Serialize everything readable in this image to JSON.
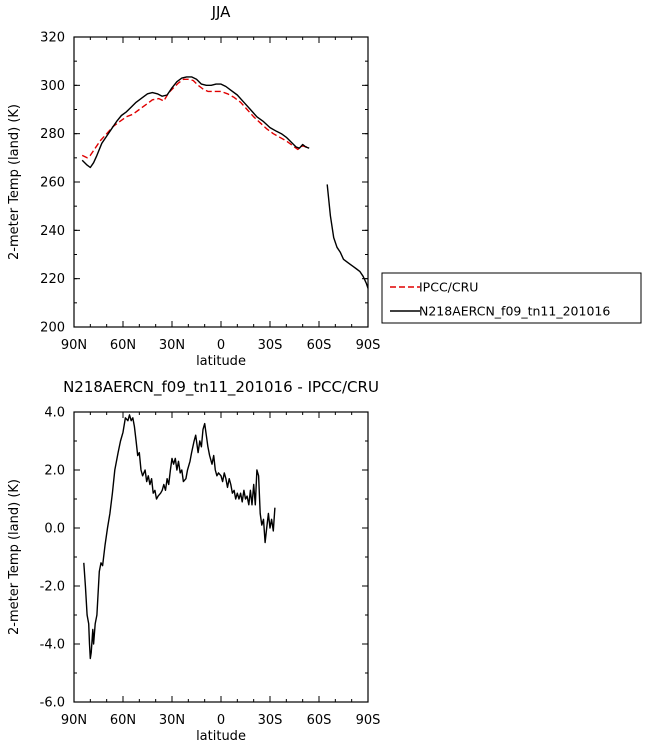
{
  "chart_data": [
    {
      "type": "line",
      "title": "JJA",
      "xlabel": "latitude",
      "ylabel": "2-meter Temp (land) (K)",
      "xlim": [
        90,
        -90
      ],
      "ylim": [
        200,
        320
      ],
      "xticks": [
        90,
        60,
        30,
        0,
        -30,
        -60,
        -90
      ],
      "xtick_labels": [
        "90N",
        "60N",
        "30N",
        "0",
        "30S",
        "60S",
        "90S"
      ],
      "yticks": [
        200,
        220,
        240,
        260,
        280,
        300,
        320
      ],
      "ytick_labels": [
        "200",
        "220",
        "240",
        "260",
        "280",
        "300",
        "320"
      ],
      "legend_position": "right",
      "series": [
        {
          "name": "IPCC/CRU",
          "color": "#e00000",
          "dashed": true,
          "segments": [
            [
              [
                85,
                271
              ],
              [
                82,
                270
              ],
              [
                80,
                271
              ],
              [
                77,
                274
              ],
              [
                74,
                277
              ],
              [
                70,
                280
              ],
              [
                66,
                283
              ],
              [
                62,
                285
              ],
              [
                58,
                287
              ],
              [
                54,
                288
              ],
              [
                50,
                290
              ],
              [
                46,
                292
              ],
              [
                42,
                294
              ],
              [
                38,
                294.5
              ],
              [
                35,
                293.5
              ],
              [
                32,
                297
              ],
              [
                29,
                299
              ],
              [
                26,
                301
              ],
              [
                23,
                302.5
              ],
              [
                20,
                302.5
              ],
              [
                17,
                302
              ],
              [
                14,
                300
              ],
              [
                11,
                298.5
              ],
              [
                8,
                297.5
              ],
              [
                4,
                297.5
              ],
              [
                0,
                297.5
              ],
              [
                -4,
                296.5
              ],
              [
                -8,
                295
              ],
              [
                -12,
                293
              ],
              [
                -16,
                290
              ],
              [
                -20,
                287
              ],
              [
                -24,
                284.5
              ],
              [
                -28,
                282
              ],
              [
                -32,
                280
              ],
              [
                -36,
                278.5
              ],
              [
                -40,
                277
              ],
              [
                -44,
                275
              ],
              [
                -47,
                273.5
              ],
              [
                -50,
                275
              ],
              [
                -52,
                274.5
              ],
              [
                -54,
                275
              ]
            ]
          ]
        },
        {
          "name": "N218AERCN_f09_tn11_201016",
          "color": "#000000",
          "dashed": false,
          "segments": [
            [
              [
                85,
                269
              ],
              [
                82,
                267
              ],
              [
                80,
                266
              ],
              [
                78,
                268
              ],
              [
                76,
                271
              ],
              [
                73,
                276
              ],
              [
                70,
                279
              ],
              [
                67,
                282
              ],
              [
                64,
                285
              ],
              [
                61,
                287.5
              ],
              [
                58,
                289
              ],
              [
                55,
                291
              ],
              [
                52,
                293
              ],
              [
                48,
                295
              ],
              [
                45,
                296.5
              ],
              [
                42,
                297
              ],
              [
                39,
                296.5
              ],
              [
                36,
                295.5
              ],
              [
                33,
                296
              ],
              [
                30,
                299
              ],
              [
                27,
                301.5
              ],
              [
                24,
                303
              ],
              [
                21,
                303.5
              ],
              [
                18,
                303.5
              ],
              [
                15,
                302.5
              ],
              [
                12,
                300.5
              ],
              [
                9,
                300
              ],
              [
                6,
                300
              ],
              [
                3,
                300.5
              ],
              [
                0,
                300.5
              ],
              [
                -3,
                299.5
              ],
              [
                -6,
                298
              ],
              [
                -10,
                296
              ],
              [
                -14,
                293
              ],
              [
                -18,
                290
              ],
              [
                -22,
                287
              ],
              [
                -26,
                285
              ],
              [
                -30,
                282.5
              ],
              [
                -34,
                281
              ],
              [
                -37,
                280
              ],
              [
                -40,
                278.5
              ],
              [
                -43,
                276.5
              ],
              [
                -46,
                274.5
              ],
              [
                -48,
                274
              ],
              [
                -50,
                275.5
              ],
              [
                -52,
                274.5
              ],
              [
                -54,
                274
              ]
            ],
            [
              [
                -65,
                259
              ],
              [
                -67,
                246
              ],
              [
                -69,
                237
              ],
              [
                -71,
                233
              ],
              [
                -73,
                231
              ],
              [
                -75,
                228
              ],
              [
                -77,
                227
              ],
              [
                -79,
                226
              ],
              [
                -81,
                225
              ],
              [
                -83,
                224
              ],
              [
                -85,
                223
              ],
              [
                -87,
                221
              ],
              [
                -89,
                218
              ],
              [
                -90,
                216
              ]
            ]
          ]
        }
      ]
    },
    {
      "type": "line",
      "title": "N218AERCN_f09_tn11_201016 - IPCC/CRU",
      "xlabel": "latitude",
      "ylabel": "2-meter Temp (land) (K)",
      "xlim": [
        90,
        -90
      ],
      "ylim": [
        -6,
        4
      ],
      "xticks": [
        90,
        60,
        30,
        0,
        -30,
        -60,
        -90
      ],
      "xtick_labels": [
        "90N",
        "60N",
        "30N",
        "0",
        "30S",
        "60S",
        "90S"
      ],
      "yticks": [
        -6,
        -4,
        -2,
        0,
        2,
        4
      ],
      "ytick_labels": [
        "-6.0",
        "-4.0",
        "-2.0",
        "0.0",
        "2.0",
        "4.0"
      ],
      "series": [
        {
          "color": "#000000",
          "dashed": false,
          "segments": [
            [
              [
                84,
                -1.2
              ],
              [
                83,
                -2.0
              ],
              [
                82,
                -3.0
              ],
              [
                81,
                -3.3
              ],
              [
                80.5,
                -4.0
              ],
              [
                80,
                -4.5
              ],
              [
                79.5,
                -4.3
              ],
              [
                78.5,
                -3.5
              ],
              [
                78,
                -4.0
              ],
              [
                77,
                -3.3
              ],
              [
                76,
                -3.0
              ],
              [
                75,
                -2.0
              ],
              [
                74.5,
                -1.5
              ],
              [
                73.5,
                -1.2
              ],
              [
                72.5,
                -1.3
              ],
              [
                71,
                -0.6
              ],
              [
                69.5,
                0.0
              ],
              [
                68,
                0.5
              ],
              [
                66.5,
                1.2
              ],
              [
                65,
                2.0
              ],
              [
                63,
                2.6
              ],
              [
                61.5,
                3.0
              ],
              [
                60,
                3.3
              ],
              [
                58.5,
                3.8
              ],
              [
                57,
                3.7
              ],
              [
                56,
                3.9
              ],
              [
                55,
                3.7
              ],
              [
                54,
                3.8
              ],
              [
                53,
                3.5
              ],
              [
                52,
                3.0
              ],
              [
                51,
                2.5
              ],
              [
                50,
                2.6
              ],
              [
                49,
                2.0
              ],
              [
                48,
                1.8
              ],
              [
                46.5,
                2.0
              ],
              [
                45.5,
                1.6
              ],
              [
                44.5,
                1.8
              ],
              [
                43.5,
                1.5
              ],
              [
                42.5,
                1.7
              ],
              [
                41.5,
                1.2
              ],
              [
                40.5,
                1.3
              ],
              [
                39.5,
                1.0
              ],
              [
                38.5,
                1.1
              ],
              [
                37,
                1.2
              ],
              [
                36,
                1.3
              ],
              [
                35,
                1.5
              ],
              [
                34,
                1.3
              ],
              [
                33,
                1.7
              ],
              [
                32,
                1.5
              ],
              [
                31,
                2.0
              ],
              [
                30,
                2.4
              ],
              [
                29,
                2.2
              ],
              [
                28,
                2.4
              ],
              [
                27,
                2.0
              ],
              [
                26,
                2.3
              ],
              [
                25,
                1.9
              ],
              [
                24,
                2.0
              ],
              [
                23,
                1.6
              ],
              [
                21.5,
                1.7
              ],
              [
                20.5,
                2.0
              ],
              [
                19,
                2.3
              ],
              [
                18,
                2.6
              ],
              [
                16.5,
                3.0
              ],
              [
                15.5,
                3.2
              ],
              [
                14,
                2.6
              ],
              [
                13,
                3.0
              ],
              [
                12,
                2.8
              ],
              [
                11,
                3.4
              ],
              [
                10,
                3.6
              ],
              [
                9,
                3.2
              ],
              [
                8,
                2.8
              ],
              [
                7,
                2.5
              ],
              [
                5.5,
                2.2
              ],
              [
                4.5,
                2.5
              ],
              [
                3.5,
                2.0
              ],
              [
                2.5,
                1.8
              ],
              [
                1.5,
                1.9
              ],
              [
                0,
                1.8
              ],
              [
                -1,
                1.6
              ],
              [
                -2,
                1.9
              ],
              [
                -3,
                1.7
              ],
              [
                -4,
                1.4
              ],
              [
                -5,
                1.7
              ],
              [
                -6,
                1.5
              ],
              [
                -7,
                1.2
              ],
              [
                -8,
                1.3
              ],
              [
                -9,
                1.0
              ],
              [
                -10,
                1.2
              ],
              [
                -11,
                1.0
              ],
              [
                -12,
                1.2
              ],
              [
                -13,
                0.9
              ],
              [
                -14,
                1.3
              ],
              [
                -15,
                1.0
              ],
              [
                -16,
                1.1
              ],
              [
                -17,
                0.8
              ],
              [
                -18,
                1.3
              ],
              [
                -19,
                0.8
              ],
              [
                -20,
                1.5
              ],
              [
                -21,
                0.8
              ],
              [
                -22,
                2.0
              ],
              [
                -23,
                1.8
              ],
              [
                -24,
                0.5
              ],
              [
                -25,
                0.1
              ],
              [
                -26,
                0.3
              ],
              [
                -27,
                -0.5
              ],
              [
                -28,
                0.0
              ],
              [
                -29,
                0.5
              ],
              [
                -30,
                0.0
              ],
              [
                -31,
                0.3
              ],
              [
                -32,
                -0.1
              ],
              [
                -33,
                0.7
              ]
            ]
          ]
        }
      ]
    }
  ]
}
